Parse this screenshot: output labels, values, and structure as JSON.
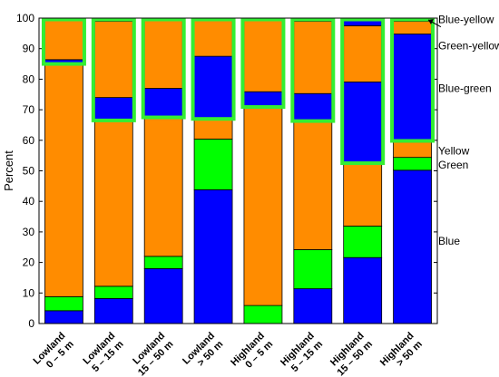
{
  "chart_data": {
    "type": "bar",
    "stacked": true,
    "ylabel": "Percent",
    "ylim": [
      0,
      100
    ],
    "yticks": [
      "0",
      "10",
      "20",
      "30",
      "40",
      "50",
      "60",
      "70",
      "80",
      "90",
      "100"
    ],
    "categories": [
      [
        "Lowland",
        "0 – 5 m"
      ],
      [
        "Lowland",
        "5 – 15 m"
      ],
      [
        "Lowland",
        "15 – 50 m"
      ],
      [
        "Lowland",
        "> 50 m"
      ],
      [
        "Highland",
        "0 – 5 m"
      ],
      [
        "Highland",
        "5 – 15 m"
      ],
      [
        "Highland",
        "15 – 50 m"
      ],
      [
        "Highland",
        "> 50 m"
      ]
    ],
    "series": [
      {
        "name": "Blue",
        "color": "#0000ff",
        "values": [
          4.2,
          8.2,
          18,
          43.8,
          0,
          11.4,
          21.6,
          50.2
        ]
      },
      {
        "name": "Green",
        "color": "#00ff00",
        "values": [
          4.6,
          4,
          4,
          16.6,
          5.9,
          12.8,
          10.3,
          4.2
        ]
      },
      {
        "name": "Yellow",
        "color": "#ff8c00",
        "values": [
          76.2,
          54.3,
          45.5,
          6.9,
          65,
          42.1,
          20.5,
          5
        ]
      },
      {
        "name": "Blue-green",
        "color": "#0000ff",
        "values": [
          1.4,
          7.5,
          9.5,
          20.2,
          5,
          9,
          26.7,
          35.4
        ]
      },
      {
        "name": "Green-yellow",
        "color": "#ff8c00",
        "values": [
          13.2,
          25,
          22.2,
          12,
          23.3,
          23.7,
          18.4,
          4.2
        ]
      },
      {
        "name": "Blue-yellow",
        "color": "#0000ff",
        "values": [
          0.4,
          1,
          0.8,
          0.5,
          0.8,
          1,
          2.5,
          1
        ]
      }
    ],
    "highlight_boxes": [
      {
        "bar": 0,
        "from": 85,
        "to": 100
      },
      {
        "bar": 1,
        "from": 66.5,
        "to": 100
      },
      {
        "bar": 2,
        "from": 67.5,
        "to": 100
      },
      {
        "bar": 3,
        "from": 67,
        "to": 100
      },
      {
        "bar": 4,
        "from": 70.9,
        "to": 100
      },
      {
        "bar": 5,
        "from": 66.3,
        "to": 100
      },
      {
        "bar": 6,
        "from": 52.5,
        "to": 100
      },
      {
        "bar": 7,
        "from": 59.8,
        "to": 100
      }
    ],
    "highlight_color": "#33ee33",
    "legend": [
      {
        "label": "Blue-yellow",
        "y": 99.5,
        "arrow": true
      },
      {
        "label": "Green-yellow",
        "y": 91
      },
      {
        "label": "Blue-green",
        "y": 77
      },
      {
        "label": "Yellow",
        "y": 56.5
      },
      {
        "label": "Green",
        "y": 52
      },
      {
        "label": "Blue",
        "y": 27
      }
    ]
  }
}
